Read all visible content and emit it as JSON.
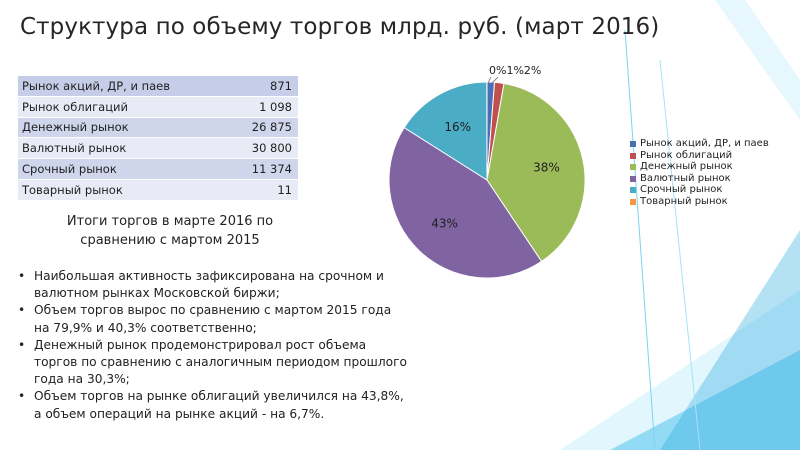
{
  "page": {
    "title": "Структура по объему торгов млрд. руб. (март 2016)",
    "subtitle_line1": "Итоги торгов в марте 2016 по",
    "subtitle_line2": "сравнению с мартом 2015"
  },
  "table": {
    "rows": [
      {
        "label": "Рынок акций, ДР, и паев",
        "value": "871"
      },
      {
        "label": "Рынок облигаций",
        "value": "1 098"
      },
      {
        "label": "Денежный рынок",
        "value": "26 875"
      },
      {
        "label": "Валютный рынок",
        "value": "30 800"
      },
      {
        "label": "Срочный рынок",
        "value": "11 374"
      },
      {
        "label": "Товарный рынок",
        "value": "11"
      }
    ]
  },
  "notes": [
    "Наибольшая активность зафиксирована на срочном и валютном рынках Московской биржи;",
    "Объем торгов вырос по сравнению с мартом 2015 года на 79,9% и 40,3% соответственно;",
    " Денежный рынок продемонстрировал рост объема торгов по сравнению с аналогичным периодом прошлого года на 30,3%;",
    "Объем торгов на рынке облигаций увеличился на 43,8%, а объем операций на рынке акций - на 6,7%."
  ],
  "bullet_glyph": "•",
  "chart_data": {
    "type": "pie",
    "legend_position": "right",
    "slices": [
      {
        "name": "Рынок акций, ДР, и паев",
        "value": 871,
        "label": "",
        "color": "#4a6fb5"
      },
      {
        "name": "Рынок облигаций",
        "value": 1098,
        "label": "",
        "color": "#c0504d"
      },
      {
        "name": "Денежный рынок",
        "value": 26875,
        "label": "38%",
        "color": "#9bbb59"
      },
      {
        "name": "Валютный рынок",
        "value": 30800,
        "label": "43%",
        "color": "#8064a2"
      },
      {
        "name": "Срочный рынок",
        "value": 11374,
        "label": "16%",
        "color": "#4bacc6"
      },
      {
        "name": "Товарный рынок",
        "value": 11,
        "label": "",
        "color": "#f79646"
      }
    ],
    "small_labels": [
      "0%",
      "1%",
      "2%"
    ]
  },
  "colors": {
    "accent_cyan": "#29b6e8",
    "accent_light": "#b8e8f8"
  }
}
